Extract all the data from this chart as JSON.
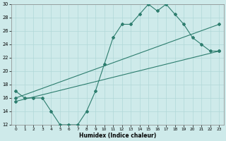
{
  "xlabel": "Humidex (Indice chaleur)",
  "bg_color": "#ceeaea",
  "line_color": "#2d7d6e",
  "grid_color": "#b0d8d8",
  "xlim": [
    -0.5,
    23.5
  ],
  "ylim": [
    12,
    30
  ],
  "xticks": [
    0,
    1,
    2,
    3,
    4,
    5,
    6,
    7,
    8,
    9,
    10,
    11,
    12,
    13,
    14,
    15,
    16,
    17,
    18,
    19,
    20,
    21,
    22,
    23
  ],
  "yticks": [
    12,
    14,
    16,
    18,
    20,
    22,
    24,
    26,
    28,
    30
  ],
  "line1_x": [
    0,
    1,
    2,
    3,
    4,
    5,
    6,
    7,
    8,
    9,
    10,
    11,
    12,
    13,
    14,
    15,
    16,
    17,
    18,
    19,
    20,
    21,
    22,
    23
  ],
  "line1_y": [
    17,
    16,
    16,
    16,
    14,
    12,
    12,
    12,
    14,
    17,
    21,
    25,
    27,
    27,
    28.5,
    30,
    29,
    30,
    28.5,
    27,
    25,
    24,
    23,
    23
  ],
  "line2_x": [
    0,
    23
  ],
  "line2_y": [
    16.0,
    27.0
  ],
  "line3_x": [
    0,
    23
  ],
  "line3_y": [
    15.5,
    23.0
  ],
  "marker_style": "D",
  "marker_size": 2.0,
  "line_width": 0.8
}
